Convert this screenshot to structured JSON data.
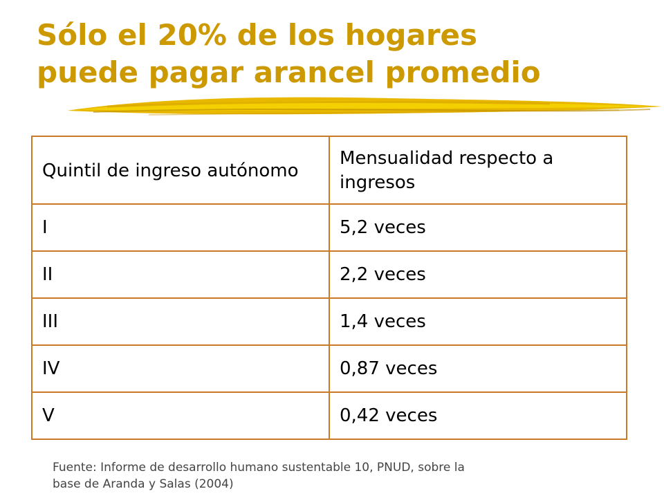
{
  "slide": {
    "title_line1": "Sólo el 20% de los hogares",
    "title_line2": "puede pagar arancel promedio",
    "accent_color": "#cc9900",
    "table_border_color": "#c87a26"
  },
  "table": {
    "headers": [
      "Quintil de ingreso autónomo",
      "Mensualidad respecto a ingresos"
    ],
    "rows": [
      [
        "I",
        "5,2 veces"
      ],
      [
        "II",
        "2,2 veces"
      ],
      [
        "III",
        "1,4 veces"
      ],
      [
        "IV",
        "0,87 veces"
      ],
      [
        "V",
        "0,42 veces"
      ]
    ]
  },
  "source": {
    "line1": "Fuente: Informe de desarrollo humano sustentable 10, PNUD, sobre la",
    "line2": "base de Aranda y Salas (2004)"
  }
}
